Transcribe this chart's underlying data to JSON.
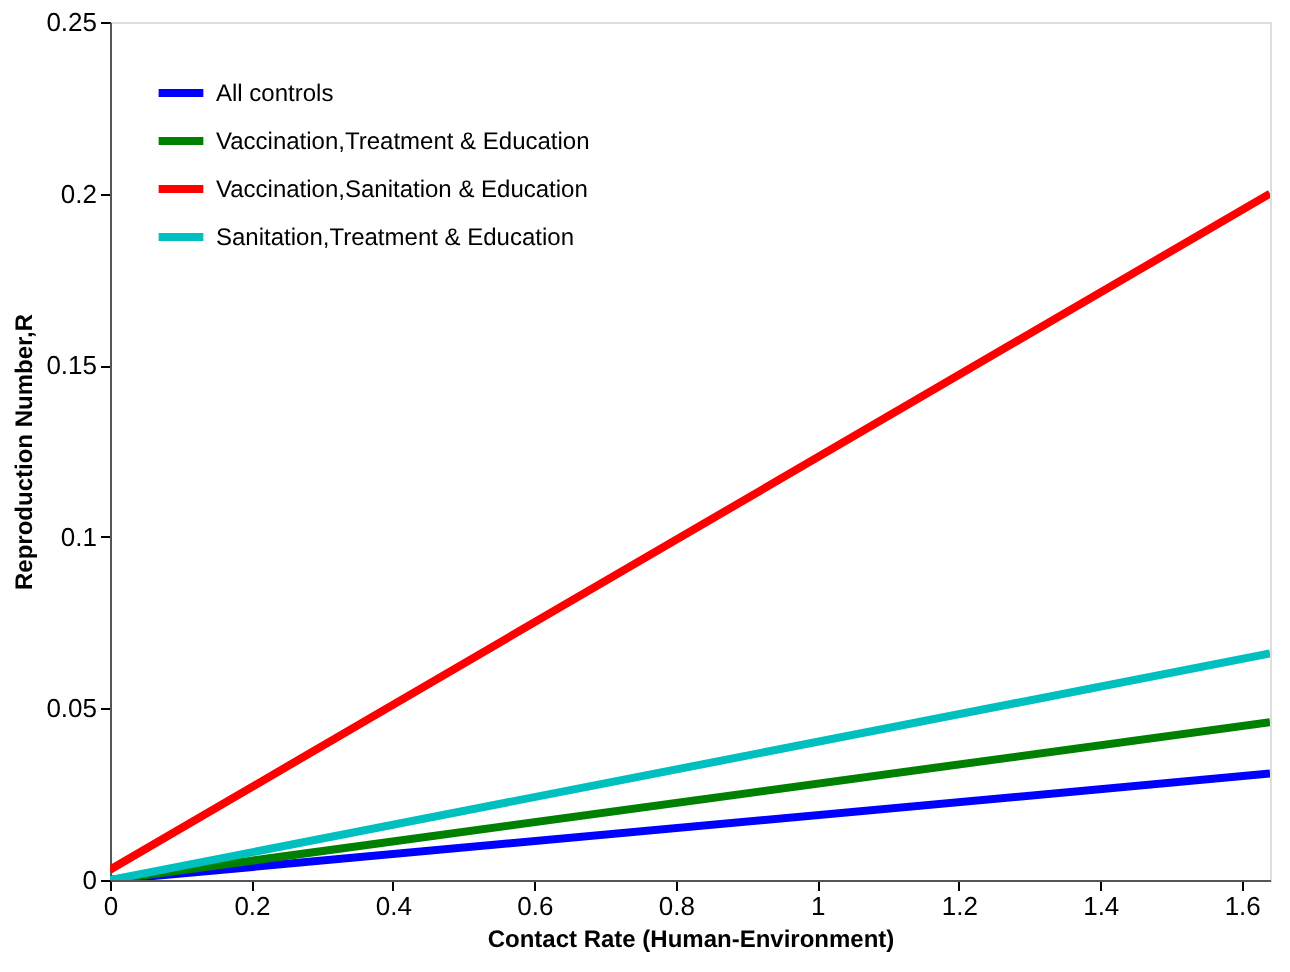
{
  "chart_data": {
    "type": "line",
    "xlabel": "Contact Rate (Human-Environment)",
    "ylabel": "Reproduction Number,R",
    "x": [
      0,
      1.64
    ],
    "series": [
      {
        "name": "All controls",
        "color": "#0000ff",
        "values": [
          0,
          0.031
        ]
      },
      {
        "name": "Vaccination,Treatment & Education",
        "color": "#008000",
        "values": [
          0,
          0.046
        ]
      },
      {
        "name": "Vaccination,Sanitation & Education",
        "color": "#ff0000",
        "values": [
          0.003,
          0.2
        ]
      },
      {
        "name": "Sanitation,Treatment & Education",
        "color": "#00bfbf",
        "values": [
          0,
          0.066
        ]
      }
    ],
    "xlim": [
      0,
      1.64
    ],
    "xticks": [
      0,
      0.2,
      0.4,
      0.6,
      0.8,
      1,
      1.2,
      1.4,
      1.6
    ],
    "ylim": [
      0,
      0.25
    ],
    "yticks": [
      0,
      0.05,
      0.1,
      0.15,
      0.2,
      0.25
    ],
    "grid": false,
    "legend": "top left",
    "marker": "none",
    "line_style": "solid"
  }
}
